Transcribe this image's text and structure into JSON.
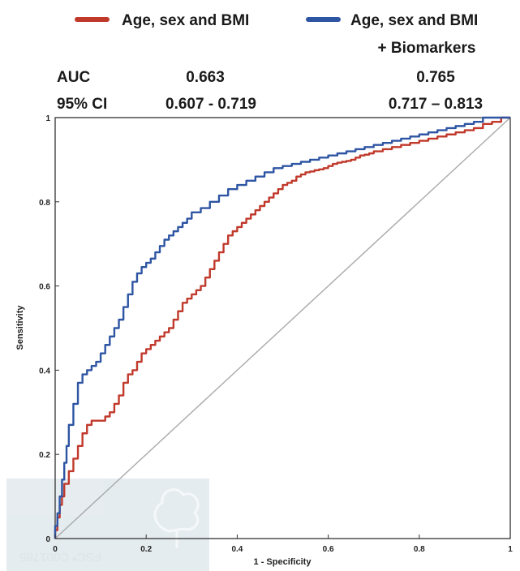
{
  "chart_data": {
    "type": "line",
    "xlabel": "1 - Specificity",
    "ylabel": "Sensitivity",
    "xlim": [
      0,
      1
    ],
    "ylim": [
      0,
      1
    ],
    "x_ticks": [
      "0",
      "0.2",
      "0.4",
      "0.6",
      "0.8",
      "1"
    ],
    "y_ticks": [
      "0",
      "0.2",
      "0.4",
      "0.6",
      "0.8",
      "1"
    ],
    "grid": false,
    "legend_position": "top",
    "legend": [
      {
        "label": "Age, sex and BMI",
        "color": "#c0392b"
      },
      {
        "label_line1": "Age, sex and BMI",
        "label_line2": "+ Biomarkers",
        "color": "#2e55a3"
      }
    ],
    "stats_table": {
      "rows": [
        {
          "label": "AUC",
          "values": [
            "0.663",
            "0.765"
          ]
        },
        {
          "label": "95% CI",
          "values": [
            "0.607 - 0.719",
            "0.717 – 0.813"
          ]
        }
      ]
    },
    "reference_line": {
      "x": [
        0,
        1
      ],
      "y": [
        0,
        1
      ],
      "color": "#a9a9a9"
    },
    "series": [
      {
        "name": "Age, sex and BMI",
        "color": "#c0392b",
        "x": [
          0,
          0.005,
          0.01,
          0.015,
          0.02,
          0.03,
          0.04,
          0.05,
          0.06,
          0.07,
          0.08,
          0.09,
          0.1,
          0.11,
          0.12,
          0.13,
          0.14,
          0.15,
          0.16,
          0.17,
          0.18,
          0.19,
          0.2,
          0.21,
          0.22,
          0.23,
          0.24,
          0.25,
          0.26,
          0.27,
          0.28,
          0.29,
          0.3,
          0.31,
          0.32,
          0.33,
          0.34,
          0.35,
          0.36,
          0.37,
          0.38,
          0.39,
          0.4,
          0.41,
          0.42,
          0.43,
          0.44,
          0.45,
          0.46,
          0.47,
          0.48,
          0.49,
          0.5,
          0.51,
          0.52,
          0.53,
          0.54,
          0.55,
          0.56,
          0.57,
          0.58,
          0.59,
          0.6,
          0.61,
          0.62,
          0.63,
          0.64,
          0.65,
          0.66,
          0.67,
          0.68,
          0.69,
          0.7,
          0.72,
          0.74,
          0.76,
          0.78,
          0.8,
          0.82,
          0.84,
          0.86,
          0.88,
          0.9,
          0.92,
          0.94,
          0.96,
          0.98,
          1.0
        ],
        "y": [
          0,
          0.02,
          0.05,
          0.08,
          0.1,
          0.13,
          0.16,
          0.19,
          0.22,
          0.25,
          0.27,
          0.28,
          0.28,
          0.28,
          0.29,
          0.3,
          0.32,
          0.34,
          0.37,
          0.39,
          0.4,
          0.42,
          0.44,
          0.45,
          0.46,
          0.47,
          0.48,
          0.49,
          0.5,
          0.52,
          0.54,
          0.56,
          0.57,
          0.58,
          0.59,
          0.6,
          0.62,
          0.64,
          0.66,
          0.68,
          0.7,
          0.72,
          0.73,
          0.74,
          0.75,
          0.76,
          0.77,
          0.78,
          0.79,
          0.8,
          0.81,
          0.82,
          0.83,
          0.84,
          0.845,
          0.85,
          0.86,
          0.865,
          0.87,
          0.872,
          0.875,
          0.877,
          0.88,
          0.885,
          0.89,
          0.893,
          0.895,
          0.897,
          0.9,
          0.905,
          0.91,
          0.912,
          0.915,
          0.92,
          0.925,
          0.93,
          0.935,
          0.94,
          0.945,
          0.95,
          0.955,
          0.96,
          0.965,
          0.97,
          0.975,
          0.985,
          0.99,
          1.0
        ]
      },
      {
        "name": "Age, sex and BMI + Biomarkers",
        "color": "#2e55a3",
        "x": [
          0,
          0.005,
          0.01,
          0.015,
          0.02,
          0.025,
          0.03,
          0.04,
          0.05,
          0.06,
          0.07,
          0.08,
          0.09,
          0.1,
          0.11,
          0.12,
          0.13,
          0.14,
          0.15,
          0.16,
          0.17,
          0.18,
          0.19,
          0.2,
          0.21,
          0.22,
          0.23,
          0.24,
          0.25,
          0.26,
          0.27,
          0.28,
          0.29,
          0.3,
          0.32,
          0.34,
          0.36,
          0.38,
          0.4,
          0.42,
          0.44,
          0.46,
          0.48,
          0.5,
          0.52,
          0.54,
          0.56,
          0.58,
          0.6,
          0.62,
          0.64,
          0.66,
          0.68,
          0.7,
          0.72,
          0.74,
          0.76,
          0.78,
          0.8,
          0.82,
          0.84,
          0.86,
          0.88,
          0.9,
          0.92,
          0.94,
          0.96,
          0.98,
          1.0
        ],
        "y": [
          0,
          0.03,
          0.06,
          0.1,
          0.14,
          0.18,
          0.22,
          0.27,
          0.32,
          0.37,
          0.39,
          0.4,
          0.41,
          0.42,
          0.44,
          0.46,
          0.48,
          0.5,
          0.52,
          0.55,
          0.58,
          0.61,
          0.63,
          0.645,
          0.655,
          0.665,
          0.68,
          0.695,
          0.71,
          0.72,
          0.73,
          0.74,
          0.75,
          0.76,
          0.775,
          0.785,
          0.8,
          0.815,
          0.83,
          0.84,
          0.85,
          0.86,
          0.87,
          0.88,
          0.885,
          0.89,
          0.895,
          0.9,
          0.905,
          0.91,
          0.915,
          0.92,
          0.925,
          0.93,
          0.935,
          0.94,
          0.945,
          0.95,
          0.955,
          0.96,
          0.965,
          0.97,
          0.975,
          0.98,
          0.985,
          0.99,
          1.0,
          1.0,
          1.0
        ]
      }
    ]
  },
  "watermark": {
    "code": "FSC* C001785"
  }
}
